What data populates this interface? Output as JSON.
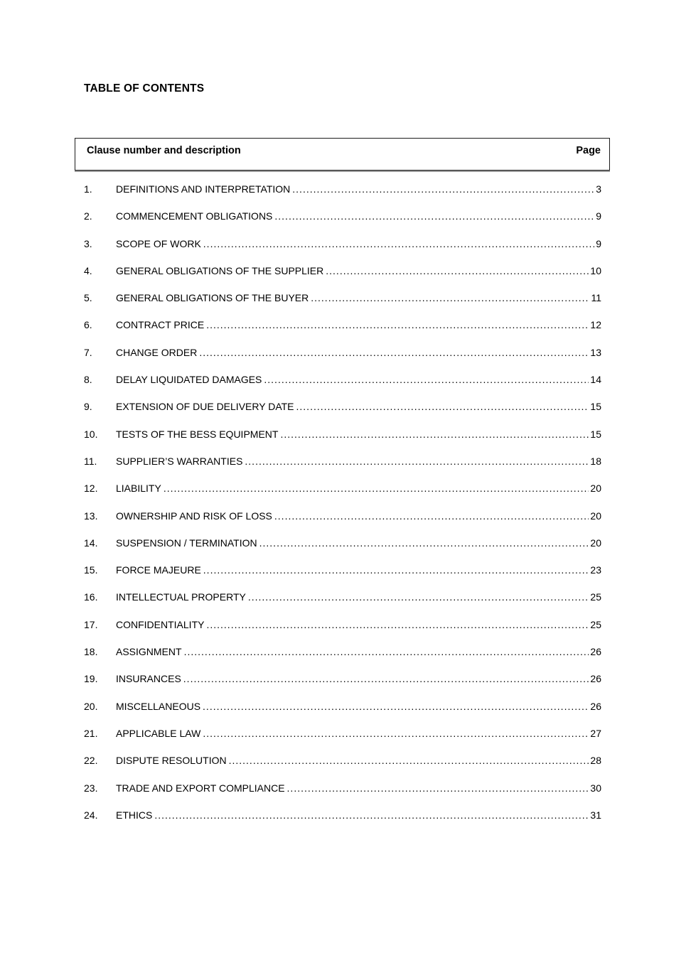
{
  "document": {
    "title": "TABLE OF CONTENTS",
    "header": {
      "clause_col": "Clause number and description",
      "page_col": "Page"
    },
    "entries": [
      {
        "num": "1.",
        "title": "DEFINITIONS AND INTERPRETATION",
        "page": "3"
      },
      {
        "num": "2.",
        "title": "COMMENCEMENT OBLIGATIONS",
        "page": "9"
      },
      {
        "num": "3.",
        "title": "SCOPE OF WORK",
        "page": "9"
      },
      {
        "num": "4.",
        "title": "GENERAL OBLIGATIONS OF THE SUPPLIER",
        "page": "10"
      },
      {
        "num": "5.",
        "title": "GENERAL OBLIGATIONS OF THE BUYER",
        "page": "11"
      },
      {
        "num": "6.",
        "title": "CONTRACT PRICE",
        "page": "12"
      },
      {
        "num": "7.",
        "title": "CHANGE ORDER",
        "page": "13"
      },
      {
        "num": "8.",
        "title": "DELAY LIQUIDATED DAMAGES",
        "page": "14"
      },
      {
        "num": "9.",
        "title": "EXTENSION OF DUE DELIVERY DATE",
        "page": "15"
      },
      {
        "num": "10.",
        "title": "TESTS OF THE BESS EQUIPMENT",
        "page": "15"
      },
      {
        "num": "11.",
        "title": "SUPPLIER’S WARRANTIES",
        "page": "18"
      },
      {
        "num": "12.",
        "title": "LIABILITY",
        "page": "20"
      },
      {
        "num": "13.",
        "title": "OWNERSHIP AND RISK OF LOSS",
        "page": "20"
      },
      {
        "num": "14.",
        "title": "SUSPENSION / TERMINATION",
        "page": "20"
      },
      {
        "num": "15.",
        "title": "FORCE MAJEURE",
        "page": "23"
      },
      {
        "num": "16.",
        "title": "INTELLECTUAL PROPERTY",
        "page": "25"
      },
      {
        "num": "17.",
        "title": "CONFIDENTIALITY",
        "page": "25"
      },
      {
        "num": "18.",
        "title": "ASSIGNMENT",
        "page": "26"
      },
      {
        "num": "19.",
        "title": "INSURANCES",
        "page": "26"
      },
      {
        "num": "20.",
        "title": "MISCELLANEOUS",
        "page": "26"
      },
      {
        "num": "21.",
        "title": "APPLICABLE LAW",
        "page": "27"
      },
      {
        "num": "22.",
        "title": "DISPUTE RESOLUTION",
        "page": "28"
      },
      {
        "num": "23.",
        "title": "TRADE AND EXPORT COMPLIANCE",
        "page": "30"
      },
      {
        "num": "24.",
        "title": "ETHICS",
        "page": "31"
      }
    ]
  }
}
